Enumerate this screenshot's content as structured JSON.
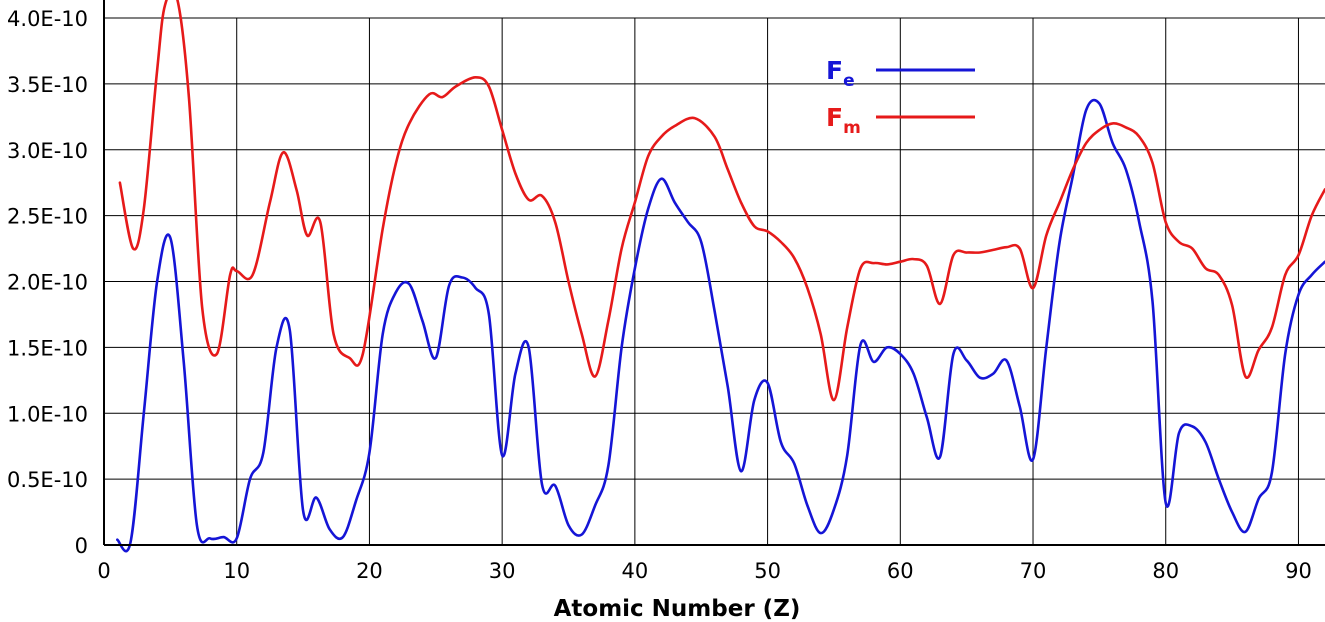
{
  "chart_data": {
    "type": "line",
    "title": "",
    "xlabel": "Atomic Number (Z)",
    "ylabel": "",
    "xlim": [
      0,
      92
    ],
    "ylim": [
      0,
      4e-10
    ],
    "x_ticks": [
      0,
      10,
      20,
      30,
      40,
      50,
      60,
      70,
      80,
      90
    ],
    "x_tick_labels": [
      "0",
      "10",
      "20",
      "30",
      "40",
      "50",
      "60",
      "70",
      "80",
      "90"
    ],
    "y_ticks": [
      0,
      5e-11,
      1e-10,
      1.5e-10,
      2e-10,
      2.5e-10,
      3e-10,
      3.5e-10,
      4e-10
    ],
    "y_tick_labels": [
      "0",
      "0.5E-10",
      "1.0E-10",
      "1.5E-10",
      "2.0E-10",
      "2.5E-10",
      "3.0E-10",
      "3.5E-10",
      "4.0E-10"
    ],
    "grid": true,
    "legend_position": "top-right",
    "series": [
      {
        "name": "F",
        "subscript": "e",
        "color": "#1515d6",
        "points": [
          [
            1,
            0.04
          ],
          [
            2,
            0.02
          ],
          [
            3,
            1.0
          ],
          [
            4,
            2.0
          ],
          [
            5,
            2.33
          ],
          [
            6,
            1.4
          ],
          [
            7,
            0.15
          ],
          [
            8,
            0.05
          ],
          [
            9,
            0.06
          ],
          [
            10,
            0.05
          ],
          [
            11,
            0.5
          ],
          [
            12,
            0.7
          ],
          [
            13,
            1.5
          ],
          [
            14,
            1.63
          ],
          [
            15,
            0.26
          ],
          [
            16,
            0.36
          ],
          [
            17,
            0.12
          ],
          [
            18,
            0.06
          ],
          [
            19,
            0.34
          ],
          [
            20,
            0.7
          ],
          [
            21,
            1.6
          ],
          [
            22,
            1.92
          ],
          [
            23,
            1.98
          ],
          [
            24,
            1.7
          ],
          [
            25,
            1.42
          ],
          [
            26,
            1.97
          ],
          [
            27,
            2.03
          ],
          [
            28,
            1.95
          ],
          [
            29,
            1.75
          ],
          [
            30,
            0.68
          ],
          [
            31,
            1.3
          ],
          [
            32,
            1.5
          ],
          [
            33,
            0.46
          ],
          [
            34,
            0.45
          ],
          [
            35,
            0.15
          ],
          [
            36,
            0.08
          ],
          [
            37,
            0.3
          ],
          [
            38,
            0.6
          ],
          [
            39,
            1.5
          ],
          [
            40,
            2.1
          ],
          [
            41,
            2.55
          ],
          [
            42,
            2.78
          ],
          [
            43,
            2.6
          ],
          [
            44,
            2.45
          ],
          [
            45,
            2.3
          ],
          [
            46,
            1.78
          ],
          [
            47,
            1.2
          ],
          [
            48,
            0.56
          ],
          [
            49,
            1.1
          ],
          [
            50,
            1.23
          ],
          [
            51,
            0.78
          ],
          [
            52,
            0.62
          ],
          [
            53,
            0.3
          ],
          [
            54,
            0.09
          ],
          [
            55,
            0.27
          ],
          [
            56,
            0.68
          ],
          [
            57,
            1.52
          ],
          [
            58,
            1.39
          ],
          [
            59,
            1.5
          ],
          [
            60,
            1.45
          ],
          [
            61,
            1.3
          ],
          [
            62,
            0.97
          ],
          [
            63,
            0.67
          ],
          [
            64,
            1.45
          ],
          [
            65,
            1.4
          ],
          [
            66,
            1.27
          ],
          [
            67,
            1.3
          ],
          [
            68,
            1.4
          ],
          [
            69,
            1.05
          ],
          [
            70,
            0.65
          ],
          [
            71,
            1.5
          ],
          [
            72,
            2.3
          ],
          [
            73,
            2.8
          ],
          [
            74,
            3.3
          ],
          [
            75,
            3.35
          ],
          [
            76,
            3.05
          ],
          [
            77,
            2.85
          ],
          [
            78,
            2.45
          ],
          [
            79,
            1.85
          ],
          [
            80,
            0.32
          ],
          [
            81,
            0.85
          ],
          [
            82,
            0.9
          ],
          [
            83,
            0.78
          ],
          [
            84,
            0.5
          ],
          [
            85,
            0.25
          ],
          [
            86,
            0.1
          ],
          [
            87,
            0.35
          ],
          [
            88,
            0.55
          ],
          [
            89,
            1.45
          ],
          [
            90,
            1.9
          ],
          [
            91,
            2.05
          ],
          [
            92,
            2.15
          ]
        ]
      },
      {
        "name": "F",
        "subscript": "m",
        "color": "#e61a1a",
        "points": [
          [
            1.2,
            2.75
          ],
          [
            2.2,
            2.25
          ],
          [
            3,
            2.55
          ],
          [
            4,
            3.6
          ],
          [
            4.6,
            4.1
          ],
          [
            5.5,
            4.15
          ],
          [
            6.4,
            3.4
          ],
          [
            7.4,
            1.8
          ],
          [
            8.5,
            1.45
          ],
          [
            9.5,
            2.05
          ],
          [
            10,
            2.08
          ],
          [
            11.2,
            2.05
          ],
          [
            12.5,
            2.6
          ],
          [
            13.5,
            2.98
          ],
          [
            14.5,
            2.7
          ],
          [
            15.3,
            2.35
          ],
          [
            16.3,
            2.45
          ],
          [
            17.3,
            1.6
          ],
          [
            18.5,
            1.42
          ],
          [
            19.5,
            1.45
          ],
          [
            21,
            2.4
          ],
          [
            22,
            2.9
          ],
          [
            23,
            3.2
          ],
          [
            24.5,
            3.42
          ],
          [
            25.5,
            3.4
          ],
          [
            26.5,
            3.48
          ],
          [
            28,
            3.55
          ],
          [
            29,
            3.48
          ],
          [
            30,
            3.15
          ],
          [
            31,
            2.82
          ],
          [
            32,
            2.62
          ],
          [
            33,
            2.65
          ],
          [
            34,
            2.45
          ],
          [
            35,
            2.0
          ],
          [
            36,
            1.6
          ],
          [
            37,
            1.28
          ],
          [
            38,
            1.7
          ],
          [
            39,
            2.25
          ],
          [
            40,
            2.6
          ],
          [
            41,
            2.95
          ],
          [
            42,
            3.1
          ],
          [
            43,
            3.18
          ],
          [
            44.5,
            3.24
          ],
          [
            46,
            3.1
          ],
          [
            47,
            2.85
          ],
          [
            48,
            2.6
          ],
          [
            49,
            2.42
          ],
          [
            50,
            2.38
          ],
          [
            51,
            2.3
          ],
          [
            52,
            2.18
          ],
          [
            53,
            1.95
          ],
          [
            54,
            1.6
          ],
          [
            55,
            1.1
          ],
          [
            56,
            1.65
          ],
          [
            57,
            2.1
          ],
          [
            58,
            2.14
          ],
          [
            59,
            2.13
          ],
          [
            60,
            2.15
          ],
          [
            61,
            2.17
          ],
          [
            62,
            2.12
          ],
          [
            63,
            1.83
          ],
          [
            64,
            2.2
          ],
          [
            65,
            2.22
          ],
          [
            66,
            2.22
          ],
          [
            67,
            2.24
          ],
          [
            68,
            2.26
          ],
          [
            69,
            2.25
          ],
          [
            70,
            1.95
          ],
          [
            71,
            2.35
          ],
          [
            72,
            2.6
          ],
          [
            73,
            2.85
          ],
          [
            74,
            3.05
          ],
          [
            75,
            3.15
          ],
          [
            76,
            3.2
          ],
          [
            77,
            3.17
          ],
          [
            78,
            3.1
          ],
          [
            79,
            2.9
          ],
          [
            80,
            2.45
          ],
          [
            81,
            2.3
          ],
          [
            82,
            2.25
          ],
          [
            83,
            2.1
          ],
          [
            84,
            2.05
          ],
          [
            85,
            1.82
          ],
          [
            86,
            1.28
          ],
          [
            87,
            1.48
          ],
          [
            88,
            1.65
          ],
          [
            89,
            2.05
          ],
          [
            90,
            2.2
          ],
          [
            91,
            2.5
          ],
          [
            92,
            2.7
          ]
        ]
      }
    ]
  }
}
